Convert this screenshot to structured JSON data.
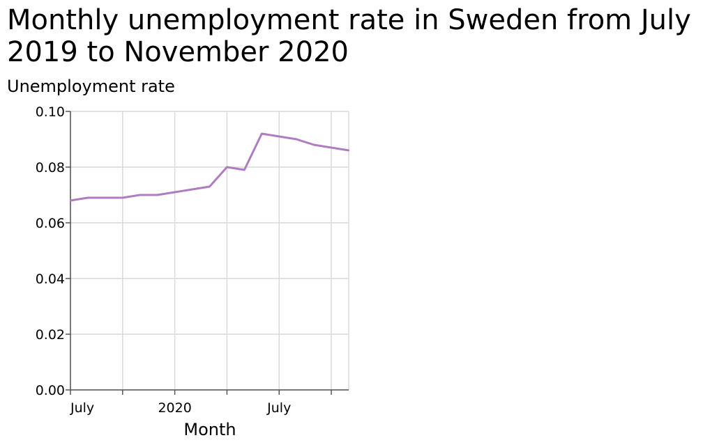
{
  "chart_data": {
    "type": "line",
    "title": "Monthly unemployment rate in Sweden from July 2019 to November 2020",
    "xlabel": "Month",
    "ylabel": "Unemployment rate",
    "ylim": [
      0,
      0.1
    ],
    "yticks": [
      "0.00",
      "0.02",
      "0.04",
      "0.06",
      "0.08",
      "0.10"
    ],
    "xticks": [
      {
        "date": "2019-07",
        "label": "July"
      },
      {
        "date": "2019-10",
        "label": ""
      },
      {
        "date": "2020-01",
        "label": "2020"
      },
      {
        "date": "2020-04",
        "label": ""
      },
      {
        "date": "2020-07",
        "label": "July"
      },
      {
        "date": "2020-10",
        "label": ""
      }
    ],
    "xlim": [
      "2019-07",
      "2020-11"
    ],
    "grid": true,
    "line_color": "#b07cc0",
    "series": [
      {
        "x": [
          "2019-07",
          "2019-08",
          "2019-09",
          "2019-10",
          "2019-11",
          "2019-12",
          "2020-01",
          "2020-02",
          "2020-03",
          "2020-04",
          "2020-05",
          "2020-06",
          "2020-07",
          "2020-08",
          "2020-09",
          "2020-10",
          "2020-11"
        ],
        "values": [
          0.068,
          0.069,
          0.069,
          0.069,
          0.07,
          0.07,
          0.071,
          0.072,
          0.073,
          0.08,
          0.079,
          0.092,
          0.091,
          0.09,
          0.088,
          0.087,
          0.086
        ]
      }
    ]
  }
}
